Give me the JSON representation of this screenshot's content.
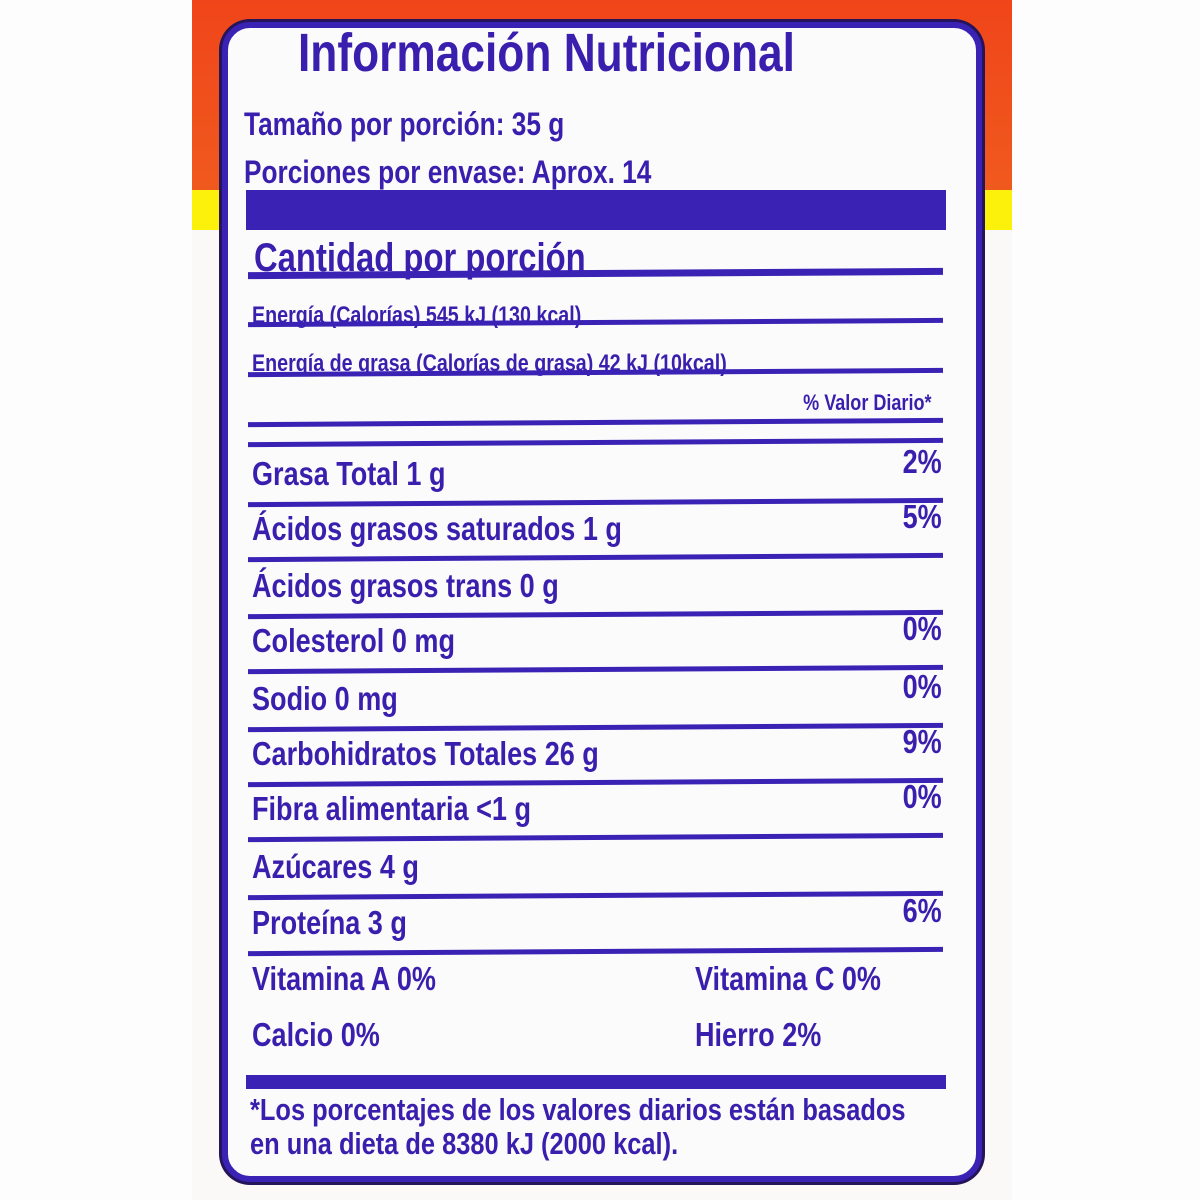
{
  "title": "Información Nutricional",
  "serving_size": "Tamaño por porción: 35 g",
  "servings_per_container": "Porciones por envase: Aprox. 14",
  "amount_per_serving": "Cantidad por porción",
  "energy": "Energía (Calorías) 545 kJ (130 kcal)",
  "energy_fat": "Energía de grasa (Calorías de grasa) 42 kJ (10kcal)",
  "daily_value_header": "% Valor Diario*",
  "nutrients": [
    {
      "label": "Grasa Total  1 g",
      "dv": "2%"
    },
    {
      "label": "Ácidos grasos saturados 1 g",
      "dv": "5%"
    },
    {
      "label": "Ácidos grasos trans 0 g",
      "dv": ""
    },
    {
      "label": "Colesterol 0 mg",
      "dv": "0%"
    },
    {
      "label": "Sodio 0 mg",
      "dv": "0%"
    },
    {
      "label": "Carbohidratos Totales  26 g",
      "dv": "9%"
    },
    {
      "label": "Fibra alimentaria  <1 g",
      "dv": "0%"
    },
    {
      "label": "Azúcares 4 g",
      "dv": ""
    },
    {
      "label": "Proteína 3 g",
      "dv": "6%"
    }
  ],
  "vitamins": [
    {
      "left": "Vitamina A 0%",
      "right": "Vitamina C 0%"
    },
    {
      "left": "Calcio 0%",
      "right": "Hierro 2%"
    }
  ],
  "footnote": [
    "*Los porcentajes de los valores diarios están basados",
    "en una dieta de 8380 kJ (2000 kcal)."
  ],
  "colors": {
    "ink": "#3a1fae",
    "orange": "#f0451a",
    "yellow": "#fbf10a"
  }
}
